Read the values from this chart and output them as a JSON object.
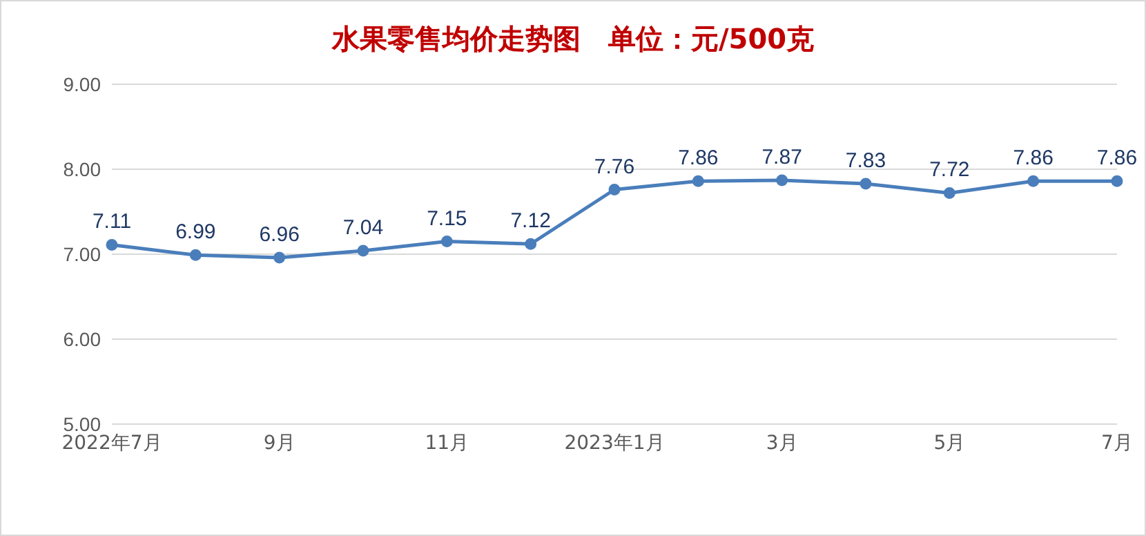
{
  "chart_data": {
    "type": "line",
    "title": "水果零售均价走势图　单位：元/500克",
    "categories": [
      "2022年7月",
      null,
      "9月",
      null,
      "11月",
      null,
      "2023年1月",
      null,
      "3月",
      null,
      "5月",
      null,
      "7月"
    ],
    "values": [
      7.11,
      6.99,
      6.96,
      7.04,
      7.15,
      7.12,
      7.76,
      7.86,
      7.87,
      7.83,
      7.72,
      7.86,
      7.86
    ],
    "color": "#4a7ebb",
    "ylim": [
      5,
      9
    ],
    "yticks": [
      {
        "value": 5,
        "label": "5.00"
      },
      {
        "value": 6,
        "label": "6.00"
      },
      {
        "value": 7,
        "label": "7.00"
      },
      {
        "value": 8,
        "label": "8.00"
      },
      {
        "value": 9,
        "label": "9.00"
      }
    ],
    "grid": "y",
    "marker": "circle",
    "data_labels": true
  }
}
